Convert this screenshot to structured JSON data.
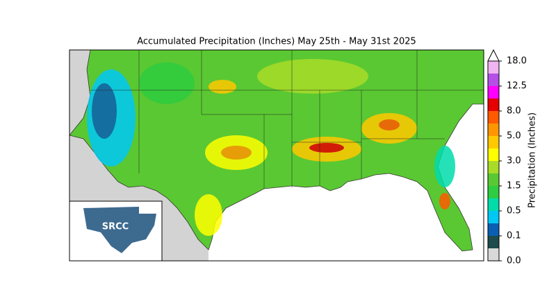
{
  "title": "Accumulated Precipitation (Inches) May 25th - May 31st 2025",
  "logo": {
    "text": "SRCC"
  },
  "colorbar": {
    "label": "Precipitation (Inches)",
    "ticks": [
      {
        "value": 0,
        "label": "0.0"
      },
      {
        "value": 0.1,
        "label": "0.1"
      },
      {
        "value": 0.5,
        "label": "0.5"
      },
      {
        "value": 1.5,
        "label": "1.5"
      },
      {
        "value": 3,
        "label": "3.0"
      },
      {
        "value": 5,
        "label": "5.0"
      },
      {
        "value": 8,
        "label": "8.0"
      },
      {
        "value": 12.5,
        "label": "12.5"
      },
      {
        "value": 18,
        "label": "18.0"
      }
    ],
    "colors": [
      "#d9d9d9",
      "#1e4b4b",
      "#0a5fb4",
      "#00c8f5",
      "#00dcaa",
      "#2ecc40",
      "#5ac832",
      "#a8dc28",
      "#ffff00",
      "#ffc800",
      "#ff9600",
      "#ff5a00",
      "#e60000",
      "#ff00ff",
      "#b450e6",
      "#f0b4f0"
    ]
  }
}
